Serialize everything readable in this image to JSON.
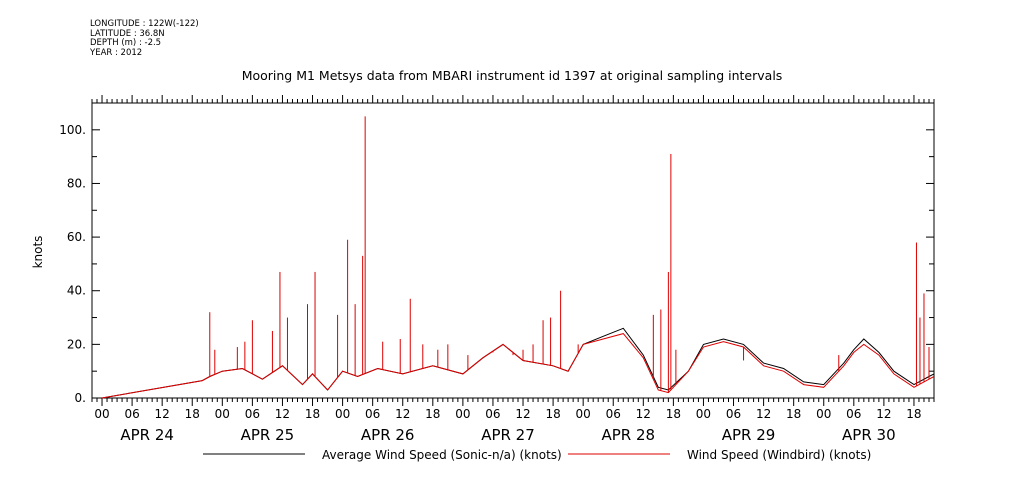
{
  "meta": {
    "longitude": "LONGITUDE : 122W(-122)",
    "latitude": "LATITUDE : 36.8N",
    "depth": "DEPTH (m) : -2.5",
    "year": "YEAR : 2012"
  },
  "chart_data": {
    "type": "line",
    "title": "Mooring M1 Metsys data from MBARI instrument id 1397 at original sampling intervals",
    "xlabel": "",
    "ylabel": "knots",
    "ylim": [
      0,
      110
    ],
    "xlim_hours": [
      -2,
      166
    ],
    "grid": false,
    "legend_position": "bottom",
    "y_ticks": [
      "0.",
      "20.",
      "40.",
      "60.",
      "80.",
      "100."
    ],
    "hour_ticks": [
      "00",
      "06",
      "12",
      "18",
      "00",
      "06",
      "12",
      "18",
      "00",
      "06",
      "12",
      "18",
      "00",
      "06",
      "12",
      "18",
      "00",
      "06",
      "12",
      "18",
      "00",
      "06",
      "12",
      "18",
      "00",
      "06",
      "12",
      "18"
    ],
    "date_labels": [
      "APR 24",
      "APR 25",
      "APR 26",
      "APR 27",
      "APR 28",
      "APR 29",
      "APR 30"
    ],
    "series": [
      {
        "name": "Average Wind Speed (Sonic-n/a) (knots)",
        "color": "#000000",
        "points": [
          [
            0,
            0
          ],
          [
            20,
            6.5
          ],
          [
            21.5,
            8
          ],
          [
            24,
            10
          ],
          [
            28,
            11
          ],
          [
            32,
            7
          ],
          [
            36,
            12
          ],
          [
            40,
            5
          ],
          [
            42,
            9
          ],
          [
            45,
            3
          ],
          [
            48,
            10
          ],
          [
            51,
            8
          ],
          [
            55,
            11
          ],
          [
            60,
            9
          ],
          [
            66,
            12
          ],
          [
            72,
            9
          ],
          [
            76,
            15
          ],
          [
            80,
            20
          ],
          [
            84,
            14
          ],
          [
            90,
            12
          ],
          [
            93,
            10
          ],
          [
            96,
            20
          ],
          [
            100,
            23
          ],
          [
            104,
            26
          ],
          [
            108,
            16
          ],
          [
            111,
            4
          ],
          [
            113,
            3
          ],
          [
            117,
            10
          ],
          [
            120,
            20
          ],
          [
            124,
            22
          ],
          [
            128,
            20
          ],
          [
            132,
            13
          ],
          [
            136,
            11
          ],
          [
            140,
            6
          ],
          [
            144,
            5
          ],
          [
            148,
            13
          ],
          [
            150,
            18
          ],
          [
            152,
            22
          ],
          [
            155,
            17
          ],
          [
            158,
            10
          ],
          [
            162,
            5
          ],
          [
            165,
            8
          ],
          [
            166,
            9
          ]
        ]
      },
      {
        "name": "Wind Speed (Windbird) (knots)",
        "color": "#dd0000",
        "points": [
          [
            0,
            0
          ],
          [
            20,
            6.5
          ],
          [
            21.5,
            8
          ],
          [
            24,
            10
          ],
          [
            28,
            11
          ],
          [
            32,
            7
          ],
          [
            36,
            12
          ],
          [
            40,
            5
          ],
          [
            42,
            9
          ],
          [
            45,
            3
          ],
          [
            48,
            10
          ],
          [
            51,
            8
          ],
          [
            55,
            11
          ],
          [
            60,
            9
          ],
          [
            66,
            12
          ],
          [
            72,
            9
          ],
          [
            76,
            15
          ],
          [
            80,
            20
          ],
          [
            84,
            14
          ],
          [
            90,
            12
          ],
          [
            93,
            10
          ],
          [
            96,
            20
          ],
          [
            100,
            22
          ],
          [
            104,
            24
          ],
          [
            108,
            15
          ],
          [
            111,
            3
          ],
          [
            113,
            2
          ],
          [
            117,
            10
          ],
          [
            120,
            19
          ],
          [
            124,
            21
          ],
          [
            128,
            19
          ],
          [
            132,
            12
          ],
          [
            136,
            10
          ],
          [
            140,
            5
          ],
          [
            144,
            4
          ],
          [
            148,
            12
          ],
          [
            150,
            17
          ],
          [
            152,
            20
          ],
          [
            155,
            16
          ],
          [
            158,
            9
          ],
          [
            162,
            4
          ],
          [
            165,
            7
          ],
          [
            166,
            8
          ]
        ],
        "spikes": [
          [
            21.5,
            32
          ],
          [
            22.5,
            18
          ],
          [
            27,
            19
          ],
          [
            28.5,
            21
          ],
          [
            30,
            29
          ],
          [
            34,
            25
          ],
          [
            35.5,
            47
          ],
          [
            37,
            30
          ],
          [
            41,
            35
          ],
          [
            42.5,
            47
          ],
          [
            47,
            31
          ],
          [
            49,
            59
          ],
          [
            50.5,
            35
          ],
          [
            52.5,
            105
          ],
          [
            52,
            53
          ],
          [
            56,
            21
          ],
          [
            59.5,
            22
          ],
          [
            61.5,
            37
          ],
          [
            64,
            20
          ],
          [
            67,
            18
          ],
          [
            69,
            20
          ],
          [
            73,
            16
          ],
          [
            78,
            17
          ],
          [
            82,
            16
          ],
          [
            84,
            18
          ],
          [
            86,
            20
          ],
          [
            88,
            29
          ],
          [
            89.5,
            30
          ],
          [
            91.5,
            40
          ],
          [
            95,
            20
          ],
          [
            110,
            31
          ],
          [
            111.5,
            33
          ],
          [
            113,
            47
          ],
          [
            113.5,
            91
          ],
          [
            114.5,
            18
          ],
          [
            128,
            14
          ],
          [
            147,
            16
          ],
          [
            162.5,
            58
          ],
          [
            163.2,
            30
          ],
          [
            164,
            39
          ],
          [
            165,
            19
          ]
        ]
      }
    ]
  }
}
